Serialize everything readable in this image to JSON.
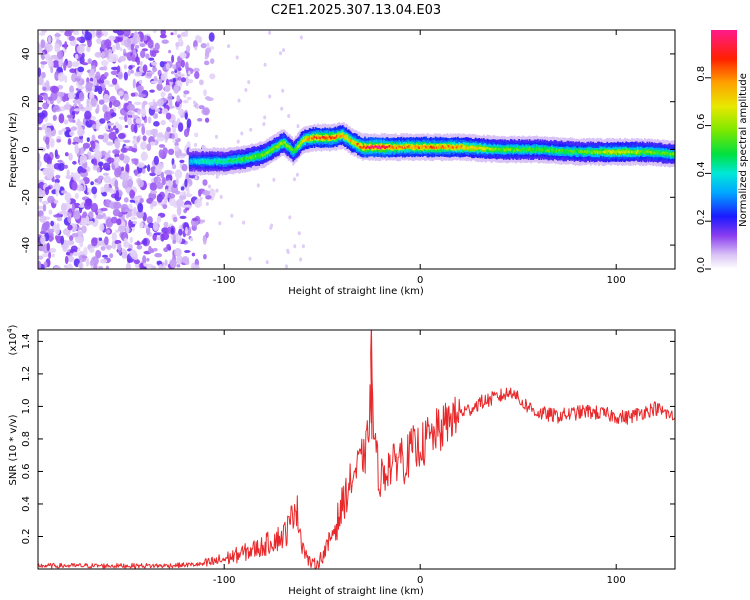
{
  "title": "C2E1.2025.307.13.04.E03",
  "chart_data": [
    {
      "type": "heatmap",
      "name": "spectrogram",
      "xlabel": "Height of straight line (km)",
      "ylabel": "Frequency (Hz)",
      "xlim": [
        -195,
        130
      ],
      "ylim": [
        -50,
        50
      ],
      "xticks": [
        -100,
        0,
        100
      ],
      "yticks": [
        -40,
        -20,
        0,
        20,
        40
      ],
      "xtick_labels": [
        "-100",
        "0",
        "100"
      ],
      "ytick_labels": [
        "-40",
        "-20",
        "0",
        "20",
        "40"
      ],
      "noise_region_end_km": -118,
      "ridge": {
        "x": [
          -118,
          -110,
          -100,
          -90,
          -80,
          -70,
          -65,
          -60,
          -55,
          -50,
          -45,
          -40,
          -35,
          -30,
          -25,
          -20,
          -10,
          0,
          10,
          20,
          40,
          60,
          80,
          100,
          115,
          130
        ],
        "y": [
          -5,
          -5,
          -5,
          -4,
          -2,
          3,
          -1,
          4,
          5,
          5,
          5,
          6,
          3,
          1,
          1,
          1,
          1,
          1,
          1,
          1,
          0,
          0,
          -1,
          -1,
          -1,
          -2
        ],
        "peak_amplitude": [
          0.35,
          0.45,
          0.45,
          0.55,
          0.6,
          0.65,
          0.55,
          0.75,
          0.85,
          0.9,
          0.9,
          0.8,
          0.75,
          0.9,
          1.0,
          1.0,
          0.8,
          0.85,
          0.85,
          0.8,
          0.6,
          0.55,
          0.55,
          0.7,
          0.6,
          0.55
        ]
      },
      "colorbar": {
        "label": "Normalized spectral amplitude",
        "range": [
          0.0,
          1.0
        ],
        "ticks": [
          0.0,
          0.2,
          0.4,
          0.6,
          0.8
        ],
        "tick_labels": [
          "0.0",
          "0.2",
          "0.4",
          "0.6",
          "0.8"
        ]
      }
    },
    {
      "type": "line",
      "name": "snr",
      "xlabel": "Height of straight line (km)",
      "ylabel": "SNR (10 * v/v)",
      "multiplier_label": "(x10",
      "multiplier_exponent": "4",
      "multiplier_close": ")",
      "xlim": [
        -195,
        130
      ],
      "ylim": [
        0,
        1.47
      ],
      "xticks": [
        -100,
        0,
        100
      ],
      "yticks": [
        0.2,
        0.4,
        0.6,
        0.8,
        1.0,
        1.2,
        1.4
      ],
      "xtick_labels": [
        "-100",
        "0",
        "100"
      ],
      "ytick_labels": [
        "0.2",
        "0.4",
        "0.6",
        "0.8",
        "1.0",
        "1.2",
        "1.4"
      ],
      "color": "#e8282a",
      "series": [
        {
          "name": "SNR",
          "x": [
            -195,
            -160,
            -130,
            -110,
            -100,
            -90,
            -80,
            -75,
            -70,
            -66,
            -64,
            -62,
            -60,
            -57,
            -55,
            -52,
            -50,
            -47,
            -45,
            -42,
            -40,
            -38,
            -36,
            -34,
            -32,
            -30,
            -28,
            -26,
            -25,
            -24,
            -23,
            -22,
            -20,
            -18,
            -16,
            -14,
            -12,
            -10,
            -8,
            -6,
            -4,
            -2,
            0,
            2,
            4,
            6,
            8,
            10,
            12,
            14,
            16,
            18,
            20,
            25,
            30,
            35,
            40,
            45,
            48,
            50,
            55,
            60,
            65,
            70,
            75,
            80,
            85,
            90,
            95,
            100,
            105,
            110,
            115,
            120,
            125,
            130
          ],
          "y": [
            0.02,
            0.02,
            0.02,
            0.03,
            0.06,
            0.1,
            0.14,
            0.18,
            0.2,
            0.28,
            0.42,
            0.3,
            0.15,
            0.05,
            0.03,
            0.04,
            0.08,
            0.14,
            0.22,
            0.3,
            0.38,
            0.45,
            0.52,
            0.58,
            0.62,
            0.68,
            0.7,
            0.9,
            1.45,
            0.9,
            0.75,
            0.65,
            0.55,
            0.6,
            0.65,
            0.62,
            0.68,
            0.72,
            0.66,
            0.7,
            0.75,
            0.72,
            0.78,
            0.76,
            0.82,
            0.8,
            0.85,
            0.84,
            0.88,
            0.9,
            0.94,
            0.92,
            0.96,
            0.98,
            1.02,
            1.04,
            1.06,
            1.08,
            1.1,
            1.04,
            1.0,
            0.96,
            0.95,
            0.94,
            0.95,
            0.96,
            0.97,
            0.96,
            0.95,
            0.94,
            0.93,
            0.95,
            0.97,
            0.99,
            0.96,
            0.93
          ]
        }
      ]
    }
  ]
}
